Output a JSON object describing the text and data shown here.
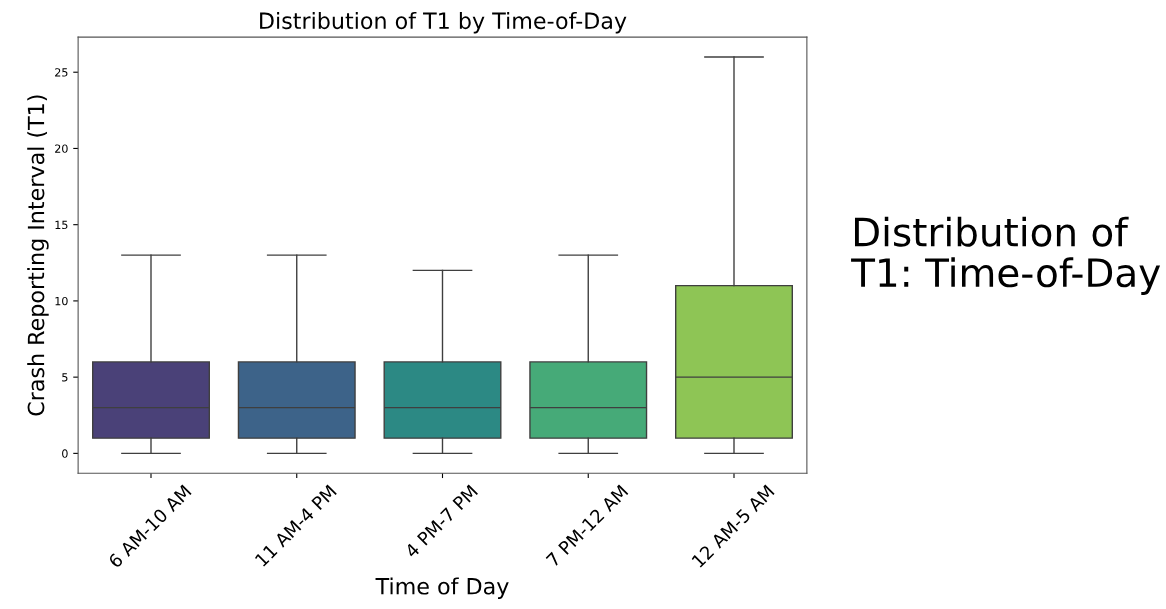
{
  "chart_data": {
    "type": "box",
    "title": "Distribution of T1 by Time-of-Day",
    "xlabel": "Time of Day",
    "ylabel": "Crash Reporting Interval (T1)",
    "categories": [
      "6 AM-10 AM",
      "11 AM-4 PM",
      "4 PM-7 PM",
      "7 PM-12 AM",
      "12 AM-5 AM"
    ],
    "colors": [
      "#4a4178",
      "#3d6389",
      "#2c8984",
      "#46aa78",
      "#8ec555"
    ],
    "boxes": [
      {
        "low": 0,
        "q1": 1,
        "median": 3,
        "q3": 6,
        "high": 13
      },
      {
        "low": 0,
        "q1": 1,
        "median": 3,
        "q3": 6,
        "high": 13
      },
      {
        "low": 0,
        "q1": 1,
        "median": 3,
        "q3": 6,
        "high": 12
      },
      {
        "low": 0,
        "q1": 1,
        "median": 3,
        "q3": 6,
        "high": 13
      },
      {
        "low": 0,
        "q1": 1,
        "median": 5,
        "q3": 11,
        "high": 26
      }
    ],
    "ylim": [
      -1.3,
      27.3
    ],
    "yticks": [
      0,
      5,
      10,
      15,
      20,
      25
    ],
    "grid": false,
    "annotations": [
      "Distribution of\nT1: Time-of-Day"
    ]
  }
}
